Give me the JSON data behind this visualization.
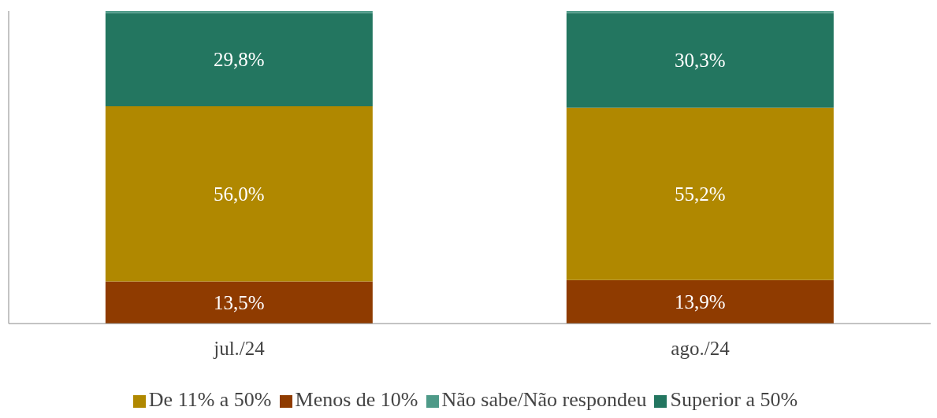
{
  "chart_data": {
    "type": "bar",
    "stacked": true,
    "categories": [
      "jul./24",
      "ago./24"
    ],
    "series": [
      {
        "name": "Menos de 10%",
        "color": "#8f3b00",
        "values": [
          13.5,
          13.9
        ],
        "value_labels": [
          "13,5%",
          "13,9%"
        ]
      },
      {
        "name": "De 11% a 50%",
        "color": "#b08800",
        "values": [
          56.0,
          55.2
        ],
        "value_labels": [
          "56,0%",
          "55,2%"
        ]
      },
      {
        "name": "Superior a 50%",
        "color": "#237660",
        "values": [
          29.8,
          30.3
        ],
        "value_labels": [
          "29,8%",
          "30,3%"
        ]
      },
      {
        "name": "Não sabe/Não respondeu",
        "color": "#4e9a88",
        "values": [
          0.7,
          0.6
        ]
      }
    ],
    "tick_labels": "x",
    "legend": "bottom"
  }
}
